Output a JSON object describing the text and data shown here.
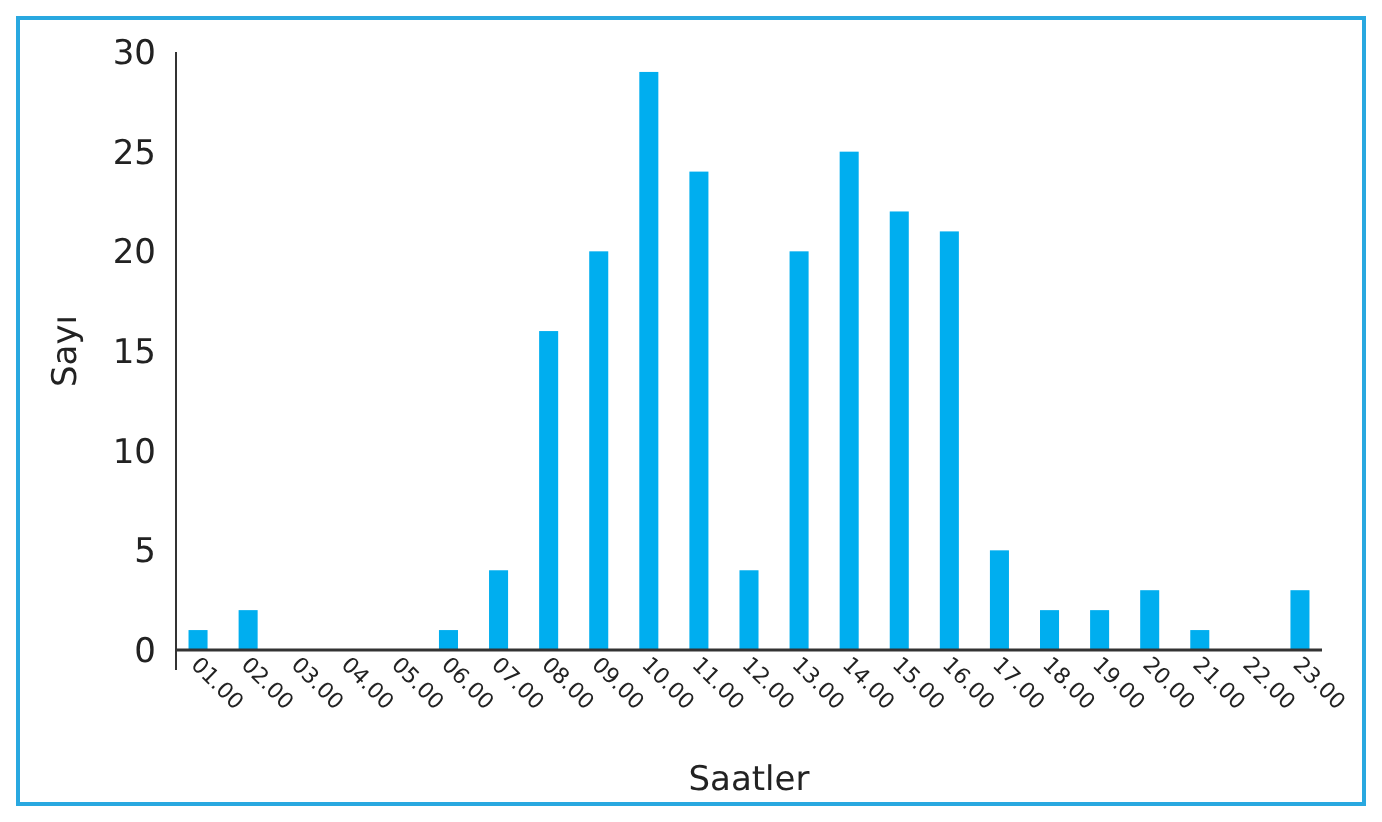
{
  "chart_data": {
    "type": "bar",
    "xlabel": "Saatler",
    "ylabel": "Sayı",
    "categories": [
      "01.00",
      "02.00",
      "03.00",
      "04.00",
      "05.00",
      "06.00",
      "07.00",
      "08.00",
      "09.00",
      "10.00",
      "11.00",
      "12.00",
      "13.00",
      "14.00",
      "15.00",
      "16.00",
      "17.00",
      "18.00",
      "19.00",
      "20.00",
      "21.00",
      "22.00",
      "23.00"
    ],
    "values": [
      1,
      2,
      0,
      0,
      0,
      1,
      4,
      16,
      20,
      29,
      24,
      4,
      20,
      25,
      22,
      21,
      5,
      2,
      2,
      3,
      1,
      0,
      3
    ],
    "color": "#00aeef",
    "ylim": [
      0,
      30
    ],
    "yticks": [
      0,
      5,
      10,
      15,
      20,
      25,
      30
    ],
    "grid": false
  }
}
